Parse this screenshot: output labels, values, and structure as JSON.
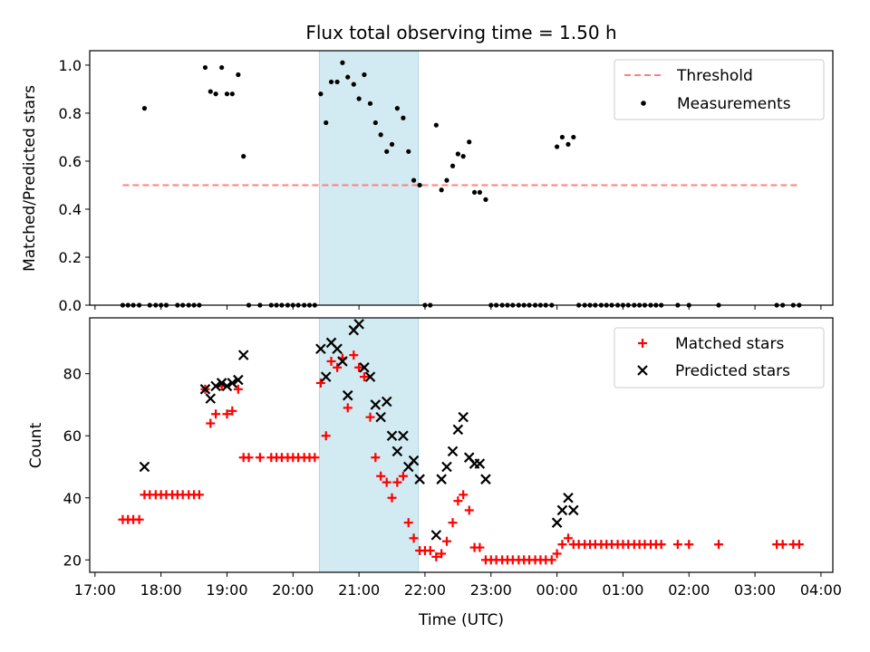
{
  "chart_data": [
    {
      "type": "scatter",
      "title": "Flux total observing time = 1.50 h",
      "ylabel": "Matched/Predicted stars",
      "ylim": [
        0,
        1.06
      ],
      "yticks": [
        "0.0",
        "0.2",
        "0.4",
        "0.6",
        "0.8",
        "1.0"
      ],
      "ytick_values": [
        0,
        0.2,
        0.4,
        0.6,
        0.8,
        1.0
      ],
      "xlim": [
        16.92,
        28.18
      ],
      "grid": false,
      "legend_position": "top-right",
      "shaded_interval": [
        20.4,
        21.9
      ],
      "shade_color": "#add8e6",
      "threshold": {
        "name": "Threshold",
        "value": 0.5,
        "x_range": [
          17.42,
          27.65
        ],
        "color": "#ff7f7f"
      },
      "series": [
        {
          "name": "Measurements",
          "color": "#000000",
          "points": [
            [
              17.42,
              0
            ],
            [
              17.5,
              0
            ],
            [
              17.58,
              0
            ],
            [
              17.67,
              0
            ],
            [
              17.75,
              0.82
            ],
            [
              17.83,
              0
            ],
            [
              17.92,
              0
            ],
            [
              18.0,
              0
            ],
            [
              18.08,
              0
            ],
            [
              18.25,
              0
            ],
            [
              18.33,
              0
            ],
            [
              18.42,
              0
            ],
            [
              18.5,
              0
            ],
            [
              18.58,
              0
            ],
            [
              18.67,
              0.99
            ],
            [
              18.75,
              0.89
            ],
            [
              18.83,
              0.88
            ],
            [
              18.92,
              0.99
            ],
            [
              19.0,
              0.88
            ],
            [
              19.08,
              0.88
            ],
            [
              19.17,
              0.96
            ],
            [
              19.25,
              0.62
            ],
            [
              19.33,
              0
            ],
            [
              19.5,
              0
            ],
            [
              19.67,
              0
            ],
            [
              19.75,
              0
            ],
            [
              19.83,
              0
            ],
            [
              19.92,
              0
            ],
            [
              20.0,
              0
            ],
            [
              20.08,
              0
            ],
            [
              20.17,
              0
            ],
            [
              20.25,
              0
            ],
            [
              20.33,
              0
            ],
            [
              20.42,
              0.88
            ],
            [
              20.5,
              0.76
            ],
            [
              20.58,
              0.93
            ],
            [
              20.67,
              0.93
            ],
            [
              20.75,
              1.01
            ],
            [
              20.83,
              0.95
            ],
            [
              20.92,
              0.92
            ],
            [
              21.0,
              0.86
            ],
            [
              21.08,
              0.96
            ],
            [
              21.17,
              0.84
            ],
            [
              21.25,
              0.76
            ],
            [
              21.33,
              0.71
            ],
            [
              21.42,
              0.64
            ],
            [
              21.5,
              0.67
            ],
            [
              21.58,
              0.82
            ],
            [
              21.67,
              0.78
            ],
            [
              21.75,
              0.64
            ],
            [
              21.83,
              0.52
            ],
            [
              21.92,
              0.5
            ],
            [
              22.0,
              0
            ],
            [
              22.08,
              0
            ],
            [
              22.17,
              0.75
            ],
            [
              22.25,
              0.48
            ],
            [
              22.33,
              0.52
            ],
            [
              22.42,
              0.58
            ],
            [
              22.5,
              0.63
            ],
            [
              22.58,
              0.62
            ],
            [
              22.67,
              0.68
            ],
            [
              22.75,
              0.47
            ],
            [
              22.83,
              0.47
            ],
            [
              22.92,
              0.44
            ],
            [
              23.0,
              0
            ],
            [
              23.08,
              0
            ],
            [
              23.17,
              0
            ],
            [
              23.25,
              0
            ],
            [
              23.33,
              0
            ],
            [
              23.42,
              0
            ],
            [
              23.5,
              0
            ],
            [
              23.58,
              0
            ],
            [
              23.67,
              0
            ],
            [
              23.75,
              0
            ],
            [
              23.83,
              0
            ],
            [
              23.92,
              0
            ],
            [
              24.0,
              0.66
            ],
            [
              24.08,
              0.7
            ],
            [
              24.17,
              0.67
            ],
            [
              24.25,
              0.7
            ],
            [
              24.33,
              0
            ],
            [
              24.42,
              0
            ],
            [
              24.5,
              0
            ],
            [
              24.58,
              0
            ],
            [
              24.67,
              0
            ],
            [
              24.75,
              0
            ],
            [
              24.83,
              0
            ],
            [
              24.92,
              0
            ],
            [
              25.0,
              0
            ],
            [
              25.08,
              0
            ],
            [
              25.17,
              0
            ],
            [
              25.25,
              0
            ],
            [
              25.33,
              0
            ],
            [
              25.42,
              0
            ],
            [
              25.5,
              0
            ],
            [
              25.58,
              0
            ],
            [
              25.83,
              0
            ],
            [
              26.0,
              0
            ],
            [
              26.45,
              0
            ],
            [
              27.33,
              0
            ],
            [
              27.42,
              0
            ],
            [
              27.58,
              0
            ],
            [
              27.67,
              0
            ]
          ]
        }
      ]
    },
    {
      "type": "scatter",
      "xlabel": "Time (UTC)",
      "ylabel": "Count",
      "ylim": [
        16,
        98
      ],
      "yticks": [
        "20",
        "40",
        "60",
        "80"
      ],
      "ytick_values": [
        20,
        40,
        60,
        80
      ],
      "xlim": [
        16.92,
        28.18
      ],
      "xticks": [
        "17:00",
        "18:00",
        "19:00",
        "20:00",
        "21:00",
        "22:00",
        "23:00",
        "00:00",
        "01:00",
        "02:00",
        "03:00",
        "04:00"
      ],
      "xtick_values": [
        17,
        18,
        19,
        20,
        21,
        22,
        23,
        24,
        25,
        26,
        27,
        28
      ],
      "grid": false,
      "legend_position": "top-right",
      "shaded_interval": [
        20.4,
        21.9
      ],
      "shade_color": "#add8e6",
      "series": [
        {
          "name": "Matched stars",
          "color": "#ff0000",
          "marker": "plus",
          "points": [
            [
              17.42,
              33
            ],
            [
              17.5,
              33
            ],
            [
              17.58,
              33
            ],
            [
              17.67,
              33
            ],
            [
              17.75,
              41
            ],
            [
              17.83,
              41
            ],
            [
              17.92,
              41
            ],
            [
              18.0,
              41
            ],
            [
              18.08,
              41
            ],
            [
              18.17,
              41
            ],
            [
              18.25,
              41
            ],
            [
              18.33,
              41
            ],
            [
              18.42,
              41
            ],
            [
              18.5,
              41
            ],
            [
              18.58,
              41
            ],
            [
              18.67,
              75
            ],
            [
              18.75,
              64
            ],
            [
              18.83,
              67
            ],
            [
              18.92,
              76
            ],
            [
              19.0,
              67
            ],
            [
              19.08,
              68
            ],
            [
              19.17,
              75
            ],
            [
              19.25,
              53
            ],
            [
              19.33,
              53
            ],
            [
              19.5,
              53
            ],
            [
              19.67,
              53
            ],
            [
              19.75,
              53
            ],
            [
              19.83,
              53
            ],
            [
              19.92,
              53
            ],
            [
              20.0,
              53
            ],
            [
              20.08,
              53
            ],
            [
              20.17,
              53
            ],
            [
              20.25,
              53
            ],
            [
              20.33,
              53
            ],
            [
              20.42,
              77
            ],
            [
              20.5,
              60
            ],
            [
              20.58,
              84
            ],
            [
              20.67,
              82
            ],
            [
              20.75,
              85
            ],
            [
              20.83,
              69
            ],
            [
              20.92,
              86
            ],
            [
              21.0,
              82
            ],
            [
              21.08,
              79
            ],
            [
              21.17,
              66
            ],
            [
              21.25,
              53
            ],
            [
              21.33,
              47
            ],
            [
              21.42,
              45
            ],
            [
              21.5,
              40
            ],
            [
              21.58,
              45
            ],
            [
              21.67,
              47
            ],
            [
              21.75,
              32
            ],
            [
              21.83,
              27
            ],
            [
              21.92,
              23
            ],
            [
              22.0,
              23
            ],
            [
              22.08,
              23
            ],
            [
              22.17,
              21
            ],
            [
              22.25,
              22
            ],
            [
              22.33,
              26
            ],
            [
              22.42,
              32
            ],
            [
              22.5,
              39
            ],
            [
              22.58,
              41
            ],
            [
              22.67,
              36
            ],
            [
              22.75,
              24
            ],
            [
              22.83,
              24
            ],
            [
              22.92,
              20
            ],
            [
              23.0,
              20
            ],
            [
              23.08,
              20
            ],
            [
              23.17,
              20
            ],
            [
              23.25,
              20
            ],
            [
              23.33,
              20
            ],
            [
              23.42,
              20
            ],
            [
              23.5,
              20
            ],
            [
              23.58,
              20
            ],
            [
              23.67,
              20
            ],
            [
              23.75,
              20
            ],
            [
              23.83,
              20
            ],
            [
              23.92,
              20
            ],
            [
              24.0,
              22
            ],
            [
              24.08,
              25
            ],
            [
              24.17,
              27
            ],
            [
              24.25,
              25
            ],
            [
              24.33,
              25
            ],
            [
              24.42,
              25
            ],
            [
              24.5,
              25
            ],
            [
              24.58,
              25
            ],
            [
              24.67,
              25
            ],
            [
              24.75,
              25
            ],
            [
              24.83,
              25
            ],
            [
              24.92,
              25
            ],
            [
              25.0,
              25
            ],
            [
              25.08,
              25
            ],
            [
              25.17,
              25
            ],
            [
              25.25,
              25
            ],
            [
              25.33,
              25
            ],
            [
              25.42,
              25
            ],
            [
              25.5,
              25
            ],
            [
              25.58,
              25
            ],
            [
              25.83,
              25
            ],
            [
              26.0,
              25
            ],
            [
              26.45,
              25
            ],
            [
              27.33,
              25
            ],
            [
              27.42,
              25
            ],
            [
              27.58,
              25
            ],
            [
              27.67,
              25
            ]
          ]
        },
        {
          "name": "Predicted stars",
          "color": "#000000",
          "marker": "x",
          "points": [
            [
              17.75,
              50
            ],
            [
              18.67,
              75
            ],
            [
              18.75,
              72
            ],
            [
              18.83,
              76
            ],
            [
              18.92,
              77
            ],
            [
              19.0,
              76
            ],
            [
              19.08,
              77
            ],
            [
              19.17,
              78
            ],
            [
              19.25,
              86
            ],
            [
              20.42,
              88
            ],
            [
              20.5,
              79
            ],
            [
              20.58,
              90
            ],
            [
              20.67,
              88
            ],
            [
              20.75,
              84
            ],
            [
              20.83,
              73
            ],
            [
              20.92,
              94
            ],
            [
              21.0,
              96
            ],
            [
              21.08,
              82
            ],
            [
              21.17,
              79
            ],
            [
              21.25,
              70
            ],
            [
              21.33,
              66
            ],
            [
              21.42,
              71
            ],
            [
              21.5,
              60
            ],
            [
              21.58,
              55
            ],
            [
              21.67,
              60
            ],
            [
              21.75,
              50
            ],
            [
              21.83,
              52
            ],
            [
              21.92,
              46
            ],
            [
              22.17,
              28
            ],
            [
              22.25,
              46
            ],
            [
              22.33,
              50
            ],
            [
              22.42,
              55
            ],
            [
              22.5,
              62
            ],
            [
              22.58,
              66
            ],
            [
              22.67,
              53
            ],
            [
              22.75,
              51
            ],
            [
              22.83,
              51
            ],
            [
              22.92,
              46
            ],
            [
              24.0,
              32
            ],
            [
              24.08,
              36
            ],
            [
              24.17,
              40
            ],
            [
              24.25,
              36
            ]
          ]
        }
      ]
    }
  ]
}
